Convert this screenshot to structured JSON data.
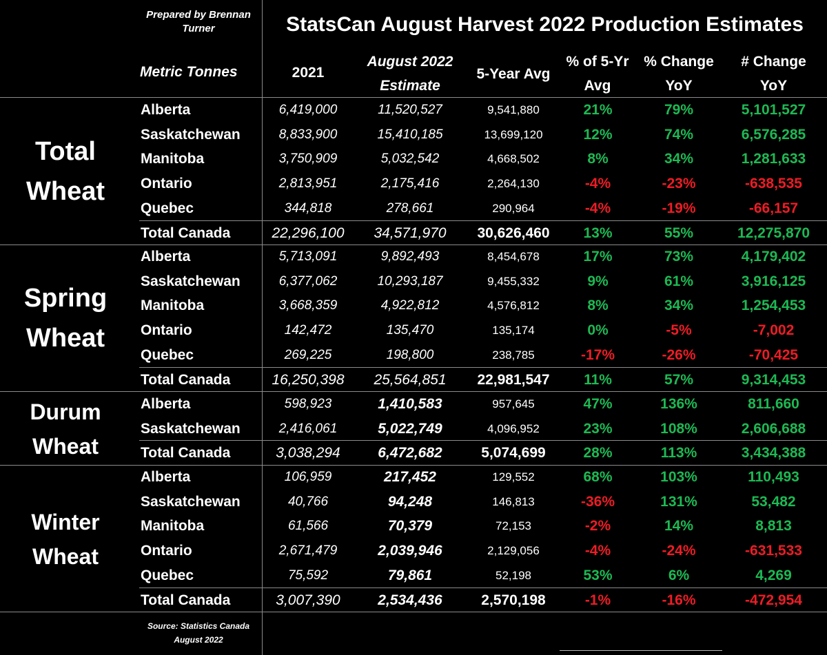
{
  "prepared_by": [
    "Prepared by Brennan",
    "Turner"
  ],
  "title": "StatsCan August Harvest 2022 Production Estimates",
  "source": [
    "Source: Statistics Canada",
    "August 2022"
  ],
  "chart_data": {
    "type": "table",
    "title": "StatsCan August Harvest 2022 Production Estimates",
    "units_label": "Metric Tonnes",
    "columns": {
      "y2021": [
        "2021"
      ],
      "estimate": [
        "August 2022",
        "Estimate"
      ],
      "avg5": [
        "5-Year Avg"
      ],
      "pct5": [
        "% of 5-Yr",
        "Avg"
      ],
      "pcty": [
        "% Change",
        "YoY"
      ],
      "numy": [
        "# Change",
        "YoY"
      ]
    },
    "sections": [
      {
        "label": [
          "Total",
          "Wheat"
        ],
        "rows": [
          {
            "province": "Alberta",
            "y2021": "6,419,000",
            "estimate": "11,520,527",
            "avg5": "9,541,880",
            "pct5": "21%",
            "pcty": "79%",
            "numy": "5,101,527"
          },
          {
            "province": "Saskatchewan",
            "y2021": "8,833,900",
            "estimate": "15,410,185",
            "avg5": "13,699,120",
            "pct5": "12%",
            "pcty": "74%",
            "numy": "6,576,285"
          },
          {
            "province": "Manitoba",
            "y2021": "3,750,909",
            "estimate": "5,032,542",
            "avg5": "4,668,502",
            "pct5": "8%",
            "pcty": "34%",
            "numy": "1,281,633"
          },
          {
            "province": "Ontario",
            "y2021": "2,813,951",
            "estimate": "2,175,416",
            "avg5": "2,264,130",
            "pct5": "-4%",
            "pcty": "-23%",
            "numy": "-638,535"
          },
          {
            "province": "Quebec",
            "y2021": "344,818",
            "estimate": "278,661",
            "avg5": "290,964",
            "pct5": "-4%",
            "pcty": "-19%",
            "numy": "-66,157"
          },
          {
            "province": "Total Canada",
            "y2021": "22,296,100",
            "estimate": "34,571,970",
            "avg5": "30,626,460",
            "pct5": "13%",
            "pcty": "55%",
            "numy": "12,275,870",
            "total": true
          }
        ]
      },
      {
        "label": [
          "Spring",
          "Wheat"
        ],
        "rows": [
          {
            "province": "Alberta",
            "y2021": "5,713,091",
            "estimate": "9,892,493",
            "avg5": "8,454,678",
            "pct5": "17%",
            "pcty": "73%",
            "numy": "4,179,402"
          },
          {
            "province": "Saskatchewan",
            "y2021": "6,377,062",
            "estimate": "10,293,187",
            "avg5": "9,455,332",
            "pct5": "9%",
            "pcty": "61%",
            "numy": "3,916,125"
          },
          {
            "province": "Manitoba",
            "y2021": "3,668,359",
            "estimate": "4,922,812",
            "avg5": "4,576,812",
            "pct5": "8%",
            "pcty": "34%",
            "numy": "1,254,453"
          },
          {
            "province": "Ontario",
            "y2021": "142,472",
            "estimate": "135,470",
            "avg5": "135,174",
            "pct5": "0%",
            "pcty": "-5%",
            "numy": "-7,002"
          },
          {
            "province": "Quebec",
            "y2021": "269,225",
            "estimate": "198,800",
            "avg5": "238,785",
            "pct5": "-17%",
            "pcty": "-26%",
            "numy": "-70,425"
          },
          {
            "province": "Total Canada",
            "y2021": "16,250,398",
            "estimate": "25,564,851",
            "avg5": "22,981,547",
            "pct5": "11%",
            "pcty": "57%",
            "numy": "9,314,453",
            "total": true
          }
        ]
      },
      {
        "label": [
          "Durum",
          "Wheat"
        ],
        "bold_estimate": true,
        "rows": [
          {
            "province": "Alberta",
            "y2021": "598,923",
            "estimate": "1,410,583",
            "avg5": "957,645",
            "pct5": "47%",
            "pcty": "136%",
            "numy": "811,660"
          },
          {
            "province": "Saskatchewan",
            "y2021": "2,416,061",
            "estimate": "5,022,749",
            "avg5": "4,096,952",
            "pct5": "23%",
            "pcty": "108%",
            "numy": "2,606,688"
          },
          {
            "province": "Total Canada",
            "y2021": "3,038,294",
            "estimate": "6,472,682",
            "avg5": "5,074,699",
            "pct5": "28%",
            "pcty": "113%",
            "numy": "3,434,388",
            "total": true
          }
        ]
      },
      {
        "label": [
          "Winter",
          "Wheat"
        ],
        "bold_estimate": true,
        "rows": [
          {
            "province": "Alberta",
            "y2021": "106,959",
            "estimate": "217,452",
            "avg5": "129,552",
            "pct5": "68%",
            "pcty": "103%",
            "numy": "110,493"
          },
          {
            "province": "Saskatchewan",
            "y2021": "40,766",
            "estimate": "94,248",
            "avg5": "146,813",
            "pct5": "-36%",
            "pcty": "131%",
            "numy": "53,482"
          },
          {
            "province": "Manitoba",
            "y2021": "61,566",
            "estimate": "70,379",
            "avg5": "72,153",
            "pct5": "-2%",
            "pcty": "14%",
            "numy": "8,813"
          },
          {
            "province": "Ontario",
            "y2021": "2,671,479",
            "estimate": "2,039,946",
            "avg5": "2,129,056",
            "pct5": "-4%",
            "pcty": "-24%",
            "numy": "-631,533"
          },
          {
            "province": "Quebec",
            "y2021": "75,592",
            "estimate": "79,861",
            "avg5": "52,198",
            "pct5": "53%",
            "pcty": "6%",
            "numy": "4,269"
          },
          {
            "province": "Total Canada",
            "y2021": "3,007,390",
            "estimate": "2,534,436",
            "avg5": "2,570,198",
            "pct5": "-1%",
            "pcty": "-16%",
            "numy": "-472,954",
            "total": true
          }
        ]
      }
    ]
  }
}
